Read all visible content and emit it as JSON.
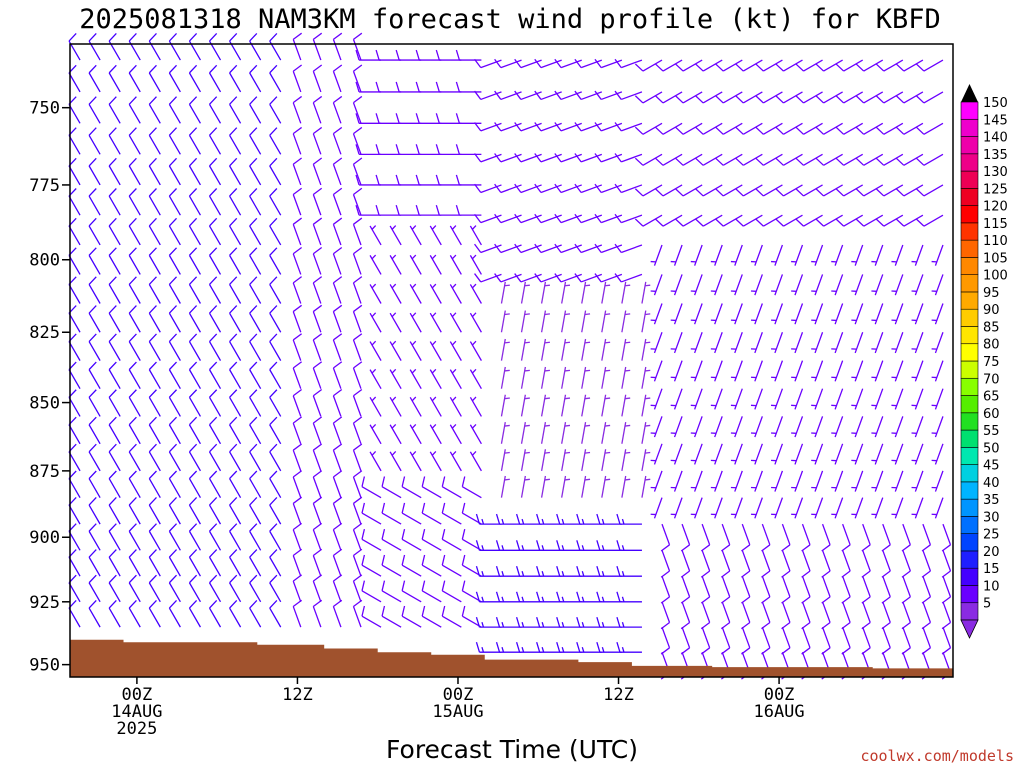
{
  "chart_data": {
    "type": "wind-barb-timeseries",
    "title": "2025081318 NAM3KM forecast wind profile (kt) for KBFD",
    "xlabel": "Forecast Time (UTC)",
    "credit": "coolwx.com/models",
    "y_axis": {
      "quantity": "pressure (hPa)",
      "range": [
        955,
        730
      ],
      "ticks": [
        750,
        775,
        800,
        825,
        850,
        875,
        900,
        925,
        950
      ]
    },
    "x_axis": {
      "range_hours_from_00Z_14AUG": [
        -5,
        61
      ],
      "ticks": [
        {
          "hour": 0,
          "line1": "00Z",
          "line2": "14AUG",
          "line3": "2025"
        },
        {
          "hour": 12,
          "line1": "12Z",
          "line2": "",
          "line3": ""
        },
        {
          "hour": 24,
          "line1": "00Z",
          "line2": "15AUG",
          "line3": ""
        },
        {
          "hour": 36,
          "line1": "12Z",
          "line2": "",
          "line3": ""
        },
        {
          "hour": 48,
          "line1": "00Z",
          "line2": "16AUG",
          "line3": ""
        }
      ]
    },
    "colorbar": {
      "unit": "kt",
      "levels": [
        5,
        10,
        15,
        20,
        25,
        30,
        35,
        40,
        45,
        50,
        55,
        60,
        65,
        70,
        75,
        80,
        85,
        90,
        95,
        100,
        105,
        110,
        115,
        120,
        125,
        130,
        135,
        140,
        145,
        150
      ],
      "colors": [
        "#8a2be2",
        "#6a00ff",
        "#4400ff",
        "#1f1fff",
        "#0044ff",
        "#0070ff",
        "#0095ff",
        "#00b4ff",
        "#00d0e0",
        "#00e8b0",
        "#00e070",
        "#22e022",
        "#55ee00",
        "#88ff00",
        "#ccff00",
        "#ffff00",
        "#ffe600",
        "#ffcc00",
        "#ffaa00",
        "#ff9900",
        "#ff8800",
        "#ff6600",
        "#ff3300",
        "#ff0000",
        "#ee0022",
        "#ee0055",
        "#ee0088",
        "#ee00aa",
        "#ee00cc",
        "#ff00ff"
      ]
    },
    "terrain": {
      "color": "#a0522d",
      "surface_pressure_hpa": [
        {
          "hour": -5,
          "p": 940
        },
        {
          "hour": -1,
          "p": 941
        },
        {
          "hour": 9,
          "p": 942
        },
        {
          "hour": 14,
          "p": 943.5
        },
        {
          "hour": 18,
          "p": 945
        },
        {
          "hour": 22,
          "p": 946
        },
        {
          "hour": 26,
          "p": 948
        },
        {
          "hour": 33,
          "p": 949
        },
        {
          "hour": 37,
          "p": 950.5
        },
        {
          "hour": 43,
          "p": 951
        },
        {
          "hour": 55,
          "p": 951.5
        }
      ]
    },
    "wind_regimes": [
      {
        "hours": [
          -5,
          12
        ],
        "p_top": 730,
        "p_bot": 955,
        "direction_deg": 330,
        "speed_kt": 12
      },
      {
        "hours": [
          12,
          18
        ],
        "p_top": 730,
        "p_bot": 955,
        "direction_deg": 340,
        "speed_kt": 10
      },
      {
        "hours": [
          18,
          27
        ],
        "p_top": 730,
        "p_bot": 790,
        "direction_deg": 270,
        "speed_kt": 10
      },
      {
        "hours": [
          18,
          27
        ],
        "p_top": 790,
        "p_bot": 880,
        "direction_deg": 330,
        "speed_kt": 8
      },
      {
        "hours": [
          18,
          27
        ],
        "p_top": 880,
        "p_bot": 955,
        "direction_deg": 300,
        "speed_kt": 10
      },
      {
        "hours": [
          27,
          38
        ],
        "p_top": 730,
        "p_bot": 810,
        "direction_deg": 250,
        "speed_kt": 10
      },
      {
        "hours": [
          27,
          38
        ],
        "p_top": 810,
        "p_bot": 890,
        "direction_deg": 10,
        "speed_kt": 5
      },
      {
        "hours": [
          27,
          38
        ],
        "p_top": 890,
        "p_bot": 955,
        "direction_deg": 270,
        "speed_kt": 15
      },
      {
        "hours": [
          38,
          61
        ],
        "p_top": 730,
        "p_bot": 790,
        "direction_deg": 240,
        "speed_kt": 10
      },
      {
        "hours": [
          38,
          61
        ],
        "p_top": 790,
        "p_bot": 890,
        "direction_deg": 200,
        "speed_kt": 8
      },
      {
        "hours": [
          38,
          61
        ],
        "p_top": 890,
        "p_bot": 955,
        "direction_deg": 160,
        "speed_kt": 10
      }
    ],
    "barb_grid": {
      "hour_step": 1.5,
      "pressure_step": 10,
      "pressure_start": 735
    }
  }
}
